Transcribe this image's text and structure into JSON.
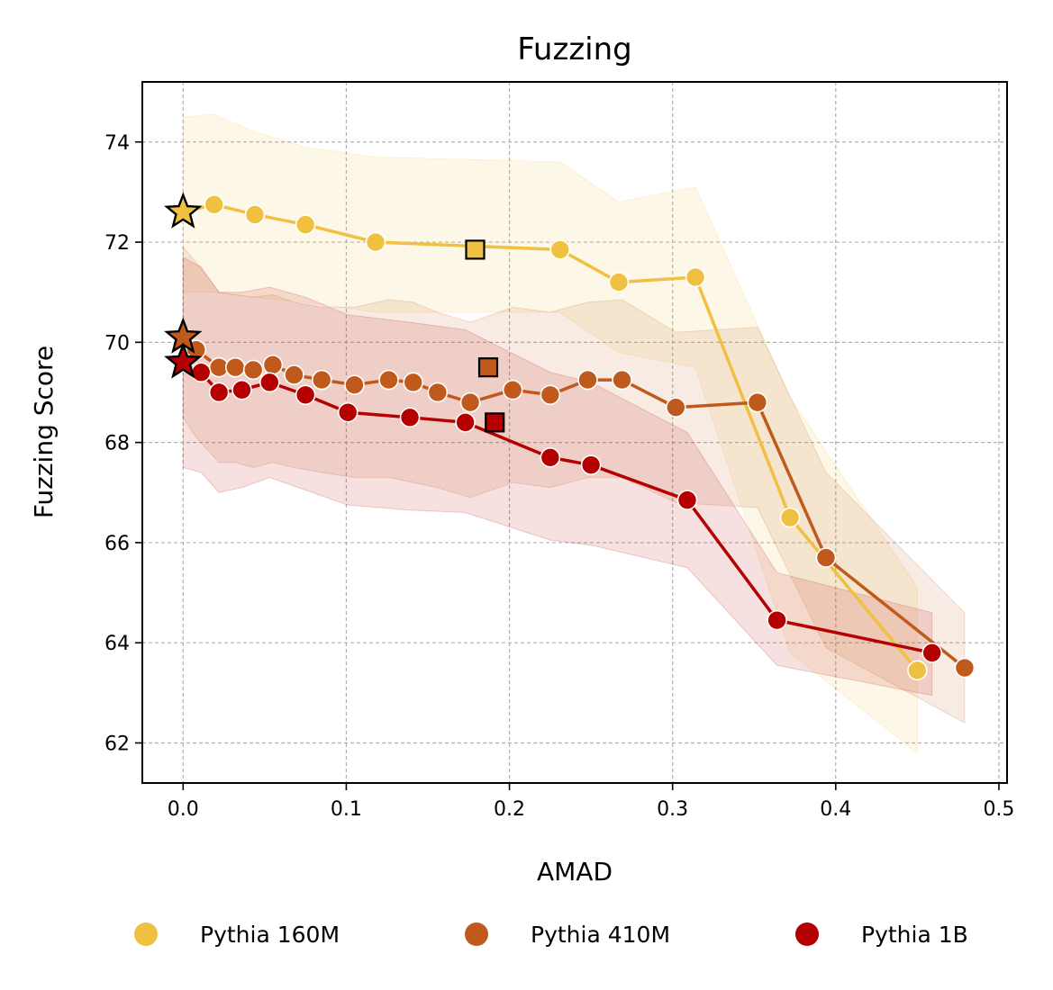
{
  "chart_data": {
    "type": "line",
    "title": "Fuzzing",
    "xlabel": "AMAD",
    "ylabel": "Fuzzing Score",
    "xlim": [
      -0.025,
      0.505
    ],
    "ylim": [
      61.2,
      75.2
    ],
    "xticks": [
      0.0,
      0.1,
      0.2,
      0.3,
      0.4,
      0.5
    ],
    "xtick_labels": [
      "0.0",
      "0.1",
      "0.2",
      "0.3",
      "0.4",
      "0.5"
    ],
    "yticks": [
      62,
      64,
      66,
      68,
      70,
      72,
      74
    ],
    "ytick_labels": [
      "62",
      "64",
      "66",
      "68",
      "70",
      "72",
      "74"
    ],
    "grid": true,
    "legend_position": "bottom",
    "series": [
      {
        "name": "Pythia 160M",
        "color": "#F0C040",
        "x": [
          0.0,
          0.019,
          0.044,
          0.075,
          0.118,
          0.231,
          0.267,
          0.314,
          0.372,
          0.45
        ],
        "y": [
          72.6,
          72.75,
          72.55,
          72.35,
          72.0,
          71.85,
          71.2,
          71.3,
          66.5,
          63.45
        ],
        "band_lower": [
          71.0,
          71.0,
          70.9,
          70.8,
          70.6,
          70.6,
          69.8,
          69.5,
          63.8,
          61.8
        ],
        "band_upper": [
          74.5,
          74.55,
          74.2,
          73.9,
          73.7,
          73.6,
          72.8,
          73.1,
          68.9,
          65.1
        ],
        "star": {
          "x": 0.0,
          "y": 72.6
        },
        "square": {
          "x": 0.179,
          "y": 71.85
        }
      },
      {
        "name": "Pythia 410M",
        "color": "#C05A1C",
        "x": [
          0.0,
          0.008,
          0.022,
          0.032,
          0.043,
          0.055,
          0.068,
          0.085,
          0.105,
          0.126,
          0.141,
          0.156,
          0.176,
          0.202,
          0.225,
          0.248,
          0.269,
          0.302,
          0.352,
          0.394,
          0.479
        ],
        "y": [
          70.1,
          69.85,
          69.5,
          69.5,
          69.45,
          69.55,
          69.35,
          69.25,
          69.15,
          69.25,
          69.2,
          69.0,
          68.8,
          69.05,
          68.95,
          69.25,
          69.25,
          68.7,
          68.8,
          65.7,
          63.5
        ],
        "band_lower": [
          68.5,
          68.1,
          67.6,
          67.6,
          67.5,
          67.6,
          67.5,
          67.4,
          67.3,
          67.3,
          67.2,
          67.1,
          66.9,
          67.2,
          67.1,
          67.3,
          67.3,
          66.8,
          66.7,
          63.9,
          62.4
        ],
        "band_upper": [
          71.9,
          71.6,
          71.0,
          70.95,
          70.9,
          70.95,
          70.8,
          70.7,
          70.7,
          70.85,
          70.8,
          70.6,
          70.4,
          70.7,
          70.6,
          70.8,
          70.85,
          70.2,
          70.3,
          67.4,
          64.6
        ],
        "star": {
          "x": 0.0,
          "y": 70.1
        },
        "square": {
          "x": 0.187,
          "y": 69.5
        }
      },
      {
        "name": "Pythia 1B",
        "color": "#B40000",
        "x": [
          0.0,
          0.011,
          0.022,
          0.036,
          0.053,
          0.075,
          0.101,
          0.139,
          0.173,
          0.225,
          0.25,
          0.309,
          0.364,
          0.459
        ],
        "y": [
          69.6,
          69.4,
          69.0,
          69.05,
          69.2,
          68.95,
          68.6,
          68.5,
          68.4,
          67.7,
          67.55,
          66.85,
          64.45,
          63.8
        ],
        "band_lower": [
          67.5,
          67.4,
          67.0,
          67.1,
          67.3,
          67.05,
          66.75,
          66.65,
          66.6,
          66.05,
          65.95,
          65.5,
          63.55,
          62.95
        ],
        "band_upper": [
          71.7,
          71.5,
          71.0,
          71.0,
          71.1,
          70.9,
          70.55,
          70.4,
          70.25,
          69.4,
          69.2,
          68.2,
          65.4,
          64.6
        ],
        "star": {
          "x": 0.0,
          "y": 69.6
        },
        "square": {
          "x": 0.191,
          "y": 68.4
        }
      }
    ]
  }
}
